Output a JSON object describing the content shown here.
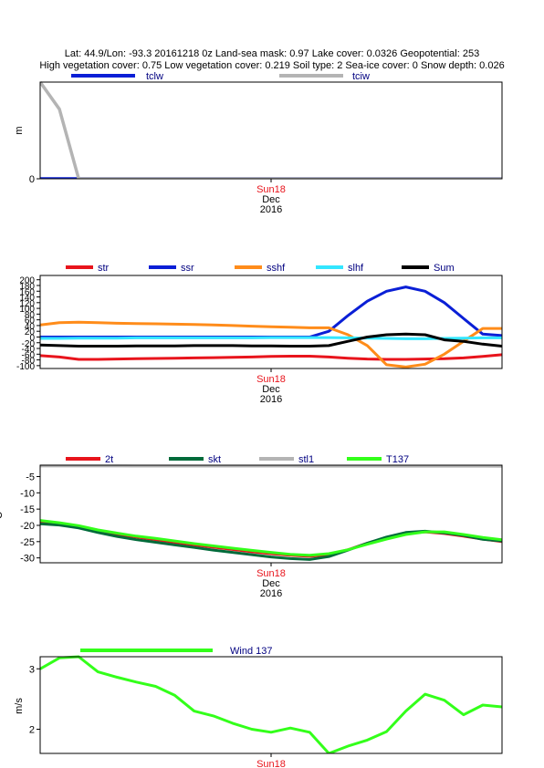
{
  "header": {
    "line1": "Lat: 44.9/Lon: -93.3 20161218 0z Land-sea mask: 0.97 Lake cover: 0.0326 Geopotential: 253",
    "line2": "High vegetation cover: 0.75 Low vegetation cover: 0.219 Soil type: 2 Sea-ice cover: 0 Snow depth: 0.026"
  },
  "colors": {
    "red": "#e8141c",
    "blue": "#0a1fd6",
    "orange": "#ff8c1a",
    "cyan": "#33e6ff",
    "black": "#000000",
    "dark_green": "#006b3a",
    "grey": "#b4b4b4",
    "bright_green": "#33ff1a",
    "legend_text": "#000080",
    "date_red": "#e8141c"
  },
  "chart_data": [
    {
      "type": "line",
      "ylabel": "m",
      "ylim": [
        0,
        0.05
      ],
      "yticks": [
        {
          "v": 0,
          "label": "0"
        }
      ],
      "x": [
        0,
        1,
        2,
        3,
        4,
        5,
        6,
        7,
        8,
        9,
        10,
        11,
        12,
        13,
        14,
        15,
        16,
        17,
        18,
        19,
        20,
        21,
        22,
        23,
        24
      ],
      "date_labels": [
        "Sun18",
        "Dec",
        "2016"
      ],
      "series": [
        {
          "name": "tclw",
          "color": "#0a1fd6",
          "values": [
            0,
            0,
            0,
            0,
            0,
            0,
            0,
            0,
            0,
            0,
            0,
            0,
            0,
            0,
            0,
            0,
            0,
            0,
            0,
            0,
            0,
            0,
            0,
            0,
            0
          ]
        },
        {
          "name": "tciw",
          "color": "#b4b4b4",
          "values": [
            0.05,
            0.036,
            0,
            0,
            0,
            0,
            0,
            0,
            0,
            0,
            0,
            0,
            0,
            0,
            0,
            0,
            0,
            0,
            0,
            0,
            0,
            0,
            0,
            0,
            0
          ]
        }
      ]
    },
    {
      "type": "line",
      "ylabel": "",
      "ylim": [
        -110,
        215
      ],
      "yticks": [
        {
          "v": 200,
          "label": "200"
        },
        {
          "v": 180,
          "label": "180"
        },
        {
          "v": 160,
          "label": "160"
        },
        {
          "v": 140,
          "label": "140"
        },
        {
          "v": 120,
          "label": "120"
        },
        {
          "v": 100,
          "label": "100"
        },
        {
          "v": 80,
          "label": "80"
        },
        {
          "v": 60,
          "label": "60"
        },
        {
          "v": 40,
          "label": "40"
        },
        {
          "v": 20,
          "label": "20"
        },
        {
          "v": 0,
          "label": "0"
        },
        {
          "v": -20,
          "label": "-20"
        },
        {
          "v": -40,
          "label": "-40"
        },
        {
          "v": -60,
          "label": "-60"
        },
        {
          "v": -80,
          "label": "-80"
        },
        {
          "v": -100,
          "label": "-100"
        }
      ],
      "x": [
        0,
        1,
        2,
        3,
        4,
        5,
        6,
        7,
        8,
        9,
        10,
        11,
        12,
        13,
        14,
        15,
        16,
        17,
        18,
        19,
        20,
        21,
        22,
        23,
        24
      ],
      "date_labels": [
        "Sun18",
        "Dec",
        "2016"
      ],
      "series": [
        {
          "name": "str",
          "color": "#e8141c",
          "values": [
            -65,
            -70,
            -78,
            -78,
            -77,
            -76,
            -75,
            -74,
            -73,
            -72,
            -71,
            -70,
            -68,
            -67,
            -67,
            -70,
            -74,
            -77,
            -78,
            -78,
            -77,
            -76,
            -73,
            -68,
            -62
          ]
        },
        {
          "name": "ssr",
          "color": "#0a1fd6",
          "values": [
            0,
            0,
            0,
            0,
            0,
            0,
            0,
            0,
            0,
            0,
            0,
            0,
            0,
            0,
            0,
            20,
            75,
            125,
            160,
            175,
            160,
            120,
            65,
            10,
            5
          ]
        },
        {
          "name": "sshf",
          "color": "#ff8c1a",
          "values": [
            42,
            50,
            52,
            50,
            48,
            47,
            46,
            45,
            44,
            42,
            40,
            38,
            36,
            34,
            32,
            32,
            8,
            -30,
            -97,
            -105,
            -95,
            -60,
            -15,
            30,
            30
          ]
        },
        {
          "name": "slhf",
          "color": "#33e6ff",
          "values": [
            -5,
            -5,
            -4,
            -4,
            -4,
            -3,
            -3,
            -3,
            -3,
            -3,
            -3,
            -3,
            -2,
            -2,
            -2,
            -2,
            -3,
            -4,
            -5,
            -6,
            -6,
            -5,
            -4,
            -3,
            -3
          ]
        },
        {
          "name": "Sum",
          "color": "#000000",
          "values": [
            -28,
            -30,
            -32,
            -32,
            -32,
            -31,
            -31,
            -31,
            -30,
            -30,
            -30,
            -31,
            -31,
            -32,
            -32,
            -30,
            -15,
            0,
            8,
            10,
            8,
            -10,
            -15,
            -25,
            -32
          ]
        }
      ]
    },
    {
      "type": "line",
      "ylabel": "C",
      "ylim": [
        -31.5,
        -1.5
      ],
      "yticks": [
        {
          "v": -5,
          "label": "-5"
        },
        {
          "v": -10,
          "label": "-10"
        },
        {
          "v": -15,
          "label": "-15"
        },
        {
          "v": -20,
          "label": "-20"
        },
        {
          "v": -25,
          "label": "-25"
        },
        {
          "v": -30,
          "label": "-30"
        }
      ],
      "x": [
        0,
        1,
        2,
        3,
        4,
        5,
        6,
        7,
        8,
        9,
        10,
        11,
        12,
        13,
        14,
        15,
        16,
        17,
        18,
        19,
        20,
        21,
        22,
        23,
        24
      ],
      "date_labels": [
        "Sun18",
        "Dec",
        "2016"
      ],
      "series": [
        {
          "name": "2t",
          "color": "#e8141c",
          "values": [
            -18.8,
            -19.6,
            -20.5,
            -21.7,
            -22.7,
            -23.6,
            -24.4,
            -25.2,
            -26,
            -26.7,
            -27.4,
            -28.1,
            -28.7,
            -29.2,
            -29.5,
            -29,
            -27.5,
            -25.5,
            -23.8,
            -22.5,
            -22,
            -22.5,
            -23.3,
            -24.2,
            -25
          ]
        },
        {
          "name": "skt",
          "color": "#006b3a",
          "values": [
            -19.5,
            -19.9,
            -20.8,
            -22.2,
            -23.4,
            -24.4,
            -25.2,
            -26,
            -26.8,
            -27.6,
            -28.3,
            -29,
            -29.7,
            -30.2,
            -30.5,
            -29.6,
            -27.6,
            -25.5,
            -23.6,
            -22.2,
            -21.8,
            -22.3,
            -23.1,
            -24.3,
            -24.8
          ]
        },
        {
          "name": "stl1",
          "color": "#b4b4b4",
          "values": [
            -1.75,
            -1.75,
            -1.76,
            -1.76,
            -1.76,
            -1.77,
            -1.77,
            -1.77,
            -1.78,
            -1.78,
            -1.78,
            -1.79,
            -1.79,
            -1.79,
            -1.8,
            -1.8,
            -1.8,
            -1.81,
            -1.81,
            -1.81,
            -1.82,
            -1.82,
            -1.82,
            -1.82,
            -1.83
          ]
        },
        {
          "name": "T137",
          "color": "#33ff1a",
          "values": [
            -18.5,
            -19.2,
            -20.1,
            -21.4,
            -22.4,
            -23.3,
            -24,
            -24.8,
            -25.6,
            -26.3,
            -27,
            -27.7,
            -28.3,
            -28.9,
            -29.2,
            -28.7,
            -27.5,
            -25.8,
            -24.2,
            -22.8,
            -22,
            -22,
            -22.8,
            -23.7,
            -24.4
          ]
        }
      ]
    },
    {
      "type": "line",
      "ylabel": "m/s",
      "ylim": [
        1.6,
        3.2
      ],
      "yticks": [
        {
          "v": 3,
          "label": "3"
        },
        {
          "v": 2,
          "label": "2"
        }
      ],
      "x": [
        0,
        1,
        2,
        3,
        4,
        5,
        6,
        7,
        8,
        9,
        10,
        11,
        12,
        13,
        14,
        15,
        16,
        17,
        18,
        19,
        20,
        21,
        22,
        23,
        24
      ],
      "date_labels": [
        "Sun18"
      ],
      "series": [
        {
          "name": "Wind 137",
          "color": "#33ff1a",
          "values": [
            3,
            3.18,
            3.2,
            2.95,
            2.86,
            2.78,
            2.71,
            2.56,
            2.3,
            2.22,
            2.1,
            2,
            1.95,
            2.02,
            1.95,
            1.6,
            1.72,
            1.82,
            1.96,
            2.3,
            2.58,
            2.48,
            2.24,
            2.4,
            2.37
          ]
        }
      ]
    }
  ]
}
